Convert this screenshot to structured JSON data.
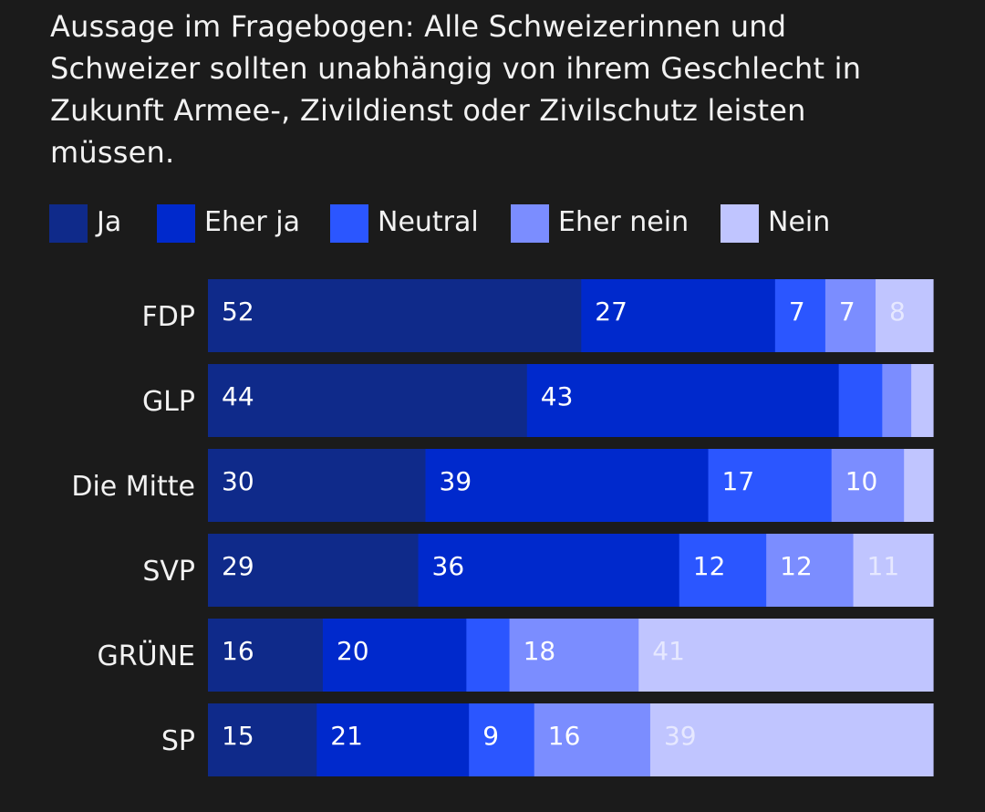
{
  "title": "Aussage im Fragebogen: Alle Schweizerinnen und Schweizer sollten unabhängig von ihrem Geschlecht in Zukunft Armee-, Zivildienst oder Zivilschutz leisten müssen.",
  "legend": [
    {
      "label": "Ja",
      "color": "#0f2a8a"
    },
    {
      "label": "Eher ja",
      "color": "#0029cc"
    },
    {
      "label": "Neutral",
      "color": "#2b56ff"
    },
    {
      "label": "Eher nein",
      "color": "#7b8dff"
    },
    {
      "label": "Nein",
      "color": "#c0c5ff"
    }
  ],
  "chart_data": {
    "type": "bar",
    "orientation": "horizontal",
    "stacked": true,
    "title": "Aussage im Fragebogen: Alle Schweizerinnen und Schweizer sollten unabhängig von ihrem Geschlecht in Zukunft Armee-, Zivildienst oder Zivilschutz leisten müssen.",
    "categories": [
      "FDP",
      "GLP",
      "Die Mitte",
      "SVP",
      "GRÜNE",
      "SP"
    ],
    "series": [
      {
        "name": "Ja",
        "color": "#0f2a8a",
        "values": [
          52,
          44,
          30,
          29,
          16,
          15
        ]
      },
      {
        "name": "Eher ja",
        "color": "#0029cc",
        "values": [
          27,
          43,
          39,
          36,
          20,
          21
        ]
      },
      {
        "name": "Neutral",
        "color": "#2b56ff",
        "values": [
          7,
          6,
          17,
          12,
          6,
          9
        ]
      },
      {
        "name": "Eher nein",
        "color": "#7b8dff",
        "values": [
          7,
          4,
          10,
          12,
          18,
          16
        ]
      },
      {
        "name": "Nein",
        "color": "#c0c5ff",
        "values": [
          8,
          3,
          4,
          11,
          41,
          39
        ]
      }
    ],
    "data_labels": [
      [
        "52",
        "27",
        "7",
        "7",
        "8"
      ],
      [
        "44",
        "43",
        "",
        "",
        ""
      ],
      [
        "30",
        "39",
        "17",
        "10",
        ""
      ],
      [
        "29",
        "36",
        "12",
        "12",
        "11"
      ],
      [
        "16",
        "20",
        "",
        "18",
        "41"
      ],
      [
        "15",
        "21",
        "9",
        "16",
        "39"
      ]
    ],
    "label_colors": [
      "#ffffff",
      "#ffffff",
      "#ffffff",
      "#ffffff",
      "#e6e8ff"
    ],
    "xlim": [
      0,
      100
    ],
    "legend_position": "top-left",
    "grid": false
  }
}
